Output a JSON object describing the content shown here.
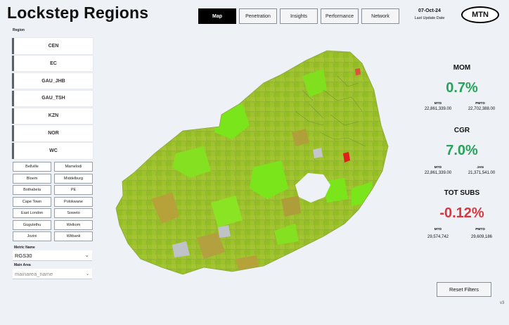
{
  "header": {
    "title": "Lockstep Regions",
    "nav_tabs": [
      "Map",
      "Penetration",
      "Insights",
      "Performance",
      "Network"
    ],
    "active_tab": "Map",
    "update_date": "07-Oct-24",
    "update_label": "Last Update Date",
    "logo_text": "MTN"
  },
  "sidebar": {
    "region_label": "Region",
    "regions": [
      "CEN",
      "EC",
      "GAU_JHB",
      "GAU_TSH",
      "KZN",
      "NOR",
      "WC"
    ],
    "areas": [
      "Bellville",
      "Mamelodi",
      "Bloem",
      "Middelburg",
      "Bothabela",
      "PE",
      "Cape Town",
      "Polokwane",
      "East London",
      "Soweto",
      "Gugulethu",
      "Welkom",
      "Jozini",
      "Witbank"
    ],
    "metric_label": "Metric Name",
    "metric_value": "RGS30",
    "main_area_label": "Main Area",
    "main_area_placeholder": "mainarea_name"
  },
  "kpis": {
    "mom": {
      "title": "MOM",
      "value": "0.7%",
      "left_label": "MTD",
      "left_value": "22,861,339.00",
      "right_label": "PMTD",
      "right_value": "22,702,388.00"
    },
    "cgr": {
      "title": "CGR",
      "value": "7.0%",
      "left_label": "MTD",
      "left_value": "22,861,339.00",
      "right_label": "JAN",
      "right_value": "21,371,541.00"
    },
    "tot_subs": {
      "title": "TOT SUBS",
      "value": "-0.12%",
      "left_label": "MTD",
      "left_value": "29,574,742",
      "right_label": "PMTD",
      "right_value": "29,609,186"
    }
  },
  "footer": {
    "reset_label": "Reset Filters",
    "version": "v3"
  },
  "map_colors": {
    "base": "#9dc32a",
    "bright": "#7be51c",
    "brown": "#b7a23a",
    "red": "#e01e1e",
    "grey": "#bfc3c7"
  }
}
